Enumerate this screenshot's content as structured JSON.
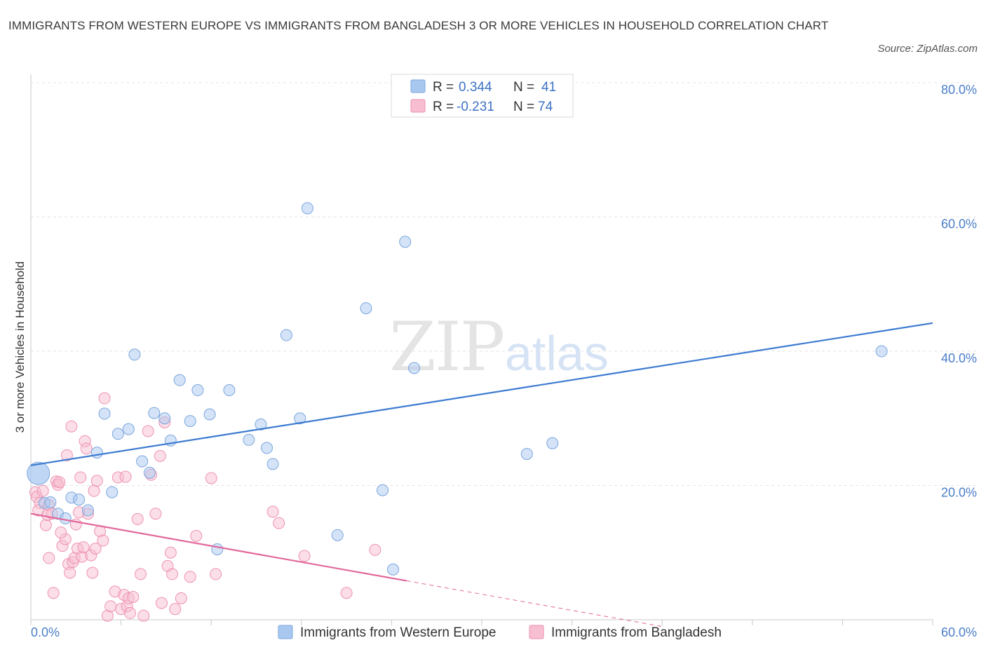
{
  "chart_data": {
    "type": "scatter",
    "title": "IMMIGRANTS FROM WESTERN EUROPE VS IMMIGRANTS FROM BANGLADESH 3 OR MORE VEHICLES IN HOUSEHOLD CORRELATION CHART",
    "source": "Source: ZipAtlas.com",
    "xlabel": "",
    "ylabel": "3 or more Vehicles in Household",
    "xlim": [
      0,
      60
    ],
    "ylim": [
      0,
      80
    ],
    "x_tick_labels": [
      "0.0%",
      "60.0%"
    ],
    "y_ticks": [
      20,
      40,
      60,
      80
    ],
    "y_tick_labels": [
      "20.0%",
      "40.0%",
      "60.0%",
      "80.0%"
    ],
    "watermark": {
      "zip": "ZIP",
      "atlas": "atlas"
    },
    "legend": {
      "r_label": "R =",
      "n_label": "N =",
      "entries": [
        {
          "name": "Immigrants from Western Europe",
          "r": "0.344",
          "n": "41",
          "color": "#a9c8f0",
          "stroke": "#7aa6de"
        },
        {
          "name": "Immigrants from Bangladesh",
          "r": "-0.231",
          "n": "74",
          "color": "#f7bdd0",
          "stroke": "#ee92b2"
        }
      ]
    },
    "series": [
      {
        "name": "Immigrants from Western Europe",
        "color": "#a9c8f0",
        "stroke": "#7aa6de",
        "line_color": "#3d7bd1",
        "trend": {
          "x0": 0,
          "y0": 23.0,
          "x1": 60,
          "y1": 44.2
        },
        "points": [
          [
            0.5,
            21.8
          ],
          [
            0.9,
            17.4
          ],
          [
            1.3,
            17.5
          ],
          [
            1.8,
            15.8
          ],
          [
            2.3,
            15.1
          ],
          [
            2.7,
            18.2
          ],
          [
            3.2,
            17.9
          ],
          [
            3.8,
            16.3
          ],
          [
            4.4,
            24.9
          ],
          [
            4.9,
            30.7
          ],
          [
            5.4,
            19.0
          ],
          [
            5.8,
            27.7
          ],
          [
            6.5,
            28.4
          ],
          [
            6.9,
            39.5
          ],
          [
            7.4,
            23.6
          ],
          [
            7.9,
            21.9
          ],
          [
            8.2,
            30.8
          ],
          [
            8.9,
            30.0
          ],
          [
            9.3,
            26.7
          ],
          [
            9.9,
            35.7
          ],
          [
            10.6,
            29.6
          ],
          [
            11.1,
            34.2
          ],
          [
            11.9,
            30.6
          ],
          [
            12.4,
            10.5
          ],
          [
            13.2,
            34.2
          ],
          [
            14.5,
            26.8
          ],
          [
            15.3,
            29.1
          ],
          [
            15.7,
            25.6
          ],
          [
            16.1,
            23.2
          ],
          [
            17.0,
            42.4
          ],
          [
            17.9,
            30.0
          ],
          [
            18.4,
            61.3
          ],
          [
            20.4,
            12.6
          ],
          [
            22.3,
            46.4
          ],
          [
            23.4,
            19.3
          ],
          [
            24.1,
            7.5
          ],
          [
            24.9,
            56.3
          ],
          [
            25.5,
            37.5
          ],
          [
            33.0,
            24.7
          ],
          [
            34.7,
            26.3
          ],
          [
            56.6,
            40.0
          ]
        ]
      },
      {
        "name": "Immigrants from Bangladesh",
        "color": "#f7bdd0",
        "stroke": "#ee92b2",
        "line_color": "#e2679a",
        "trend": {
          "x0": 0,
          "y0": 15.8,
          "x1": 25,
          "y1": 5.8
        },
        "trend_dashed": {
          "x0": 25,
          "y0": 5.8,
          "x1": 42,
          "y1": -1.0
        },
        "points": [
          [
            0.3,
            19.0
          ],
          [
            0.4,
            18.3
          ],
          [
            0.6,
            17.4
          ],
          [
            0.8,
            19.2
          ],
          [
            1.0,
            14.1
          ],
          [
            1.1,
            15.6
          ],
          [
            1.2,
            17.1
          ],
          [
            1.4,
            15.8
          ],
          [
            1.5,
            4.0
          ],
          [
            1.7,
            20.6
          ],
          [
            1.8,
            20.1
          ],
          [
            1.9,
            20.5
          ],
          [
            2.1,
            11.0
          ],
          [
            2.3,
            12.0
          ],
          [
            2.4,
            24.5
          ],
          [
            2.5,
            8.3
          ],
          [
            2.6,
            7.0
          ],
          [
            2.7,
            28.8
          ],
          [
            2.8,
            8.6
          ],
          [
            2.9,
            9.2
          ],
          [
            3.0,
            14.2
          ],
          [
            3.1,
            10.6
          ],
          [
            3.3,
            21.2
          ],
          [
            3.4,
            9.4
          ],
          [
            3.5,
            10.8
          ],
          [
            3.6,
            26.6
          ],
          [
            3.7,
            25.5
          ],
          [
            3.8,
            15.8
          ],
          [
            4.0,
            9.6
          ],
          [
            4.1,
            7.0
          ],
          [
            4.2,
            19.2
          ],
          [
            4.3,
            10.6
          ],
          [
            4.4,
            20.7
          ],
          [
            4.6,
            13.2
          ],
          [
            4.8,
            11.8
          ],
          [
            4.9,
            33.0
          ],
          [
            5.1,
            0.6
          ],
          [
            5.3,
            2.0
          ],
          [
            5.6,
            4.2
          ],
          [
            5.8,
            21.2
          ],
          [
            6.0,
            1.6
          ],
          [
            6.2,
            3.7
          ],
          [
            6.3,
            21.3
          ],
          [
            6.4,
            2.0
          ],
          [
            6.5,
            3.2
          ],
          [
            6.8,
            3.4
          ],
          [
            7.1,
            15.0
          ],
          [
            7.3,
            6.8
          ],
          [
            7.5,
            0.6
          ],
          [
            7.8,
            28.1
          ],
          [
            8.0,
            21.6
          ],
          [
            8.3,
            15.8
          ],
          [
            8.6,
            24.4
          ],
          [
            8.9,
            29.4
          ],
          [
            9.1,
            8.0
          ],
          [
            9.3,
            10.0
          ],
          [
            9.4,
            6.8
          ],
          [
            9.6,
            1.6
          ],
          [
            10.0,
            3.2
          ],
          [
            10.6,
            6.4
          ],
          [
            11.0,
            12.5
          ],
          [
            12.0,
            21.1
          ],
          [
            12.3,
            6.8
          ],
          [
            16.1,
            16.1
          ],
          [
            16.5,
            14.4
          ],
          [
            18.2,
            9.5
          ],
          [
            21.0,
            4.0
          ],
          [
            22.9,
            10.4
          ],
          [
            0.5,
            16.3
          ],
          [
            1.2,
            9.2
          ],
          [
            2.0,
            13.0
          ],
          [
            3.2,
            16.0
          ],
          [
            6.6,
            1.0
          ],
          [
            8.7,
            2.5
          ]
        ]
      }
    ]
  }
}
